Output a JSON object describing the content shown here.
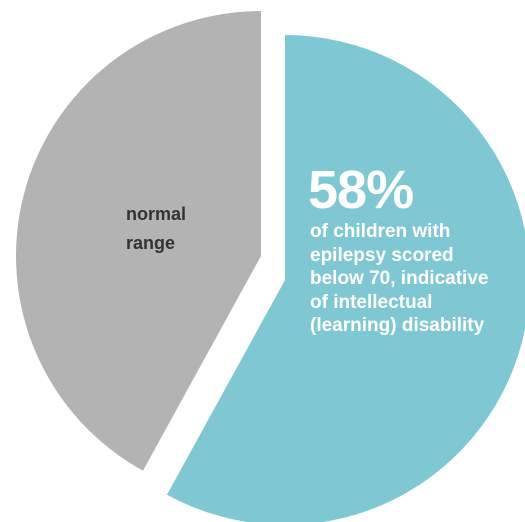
{
  "chart_data": {
    "type": "pie",
    "categories": [
      null,
      "normal range"
    ],
    "values": [
      58,
      42
    ],
    "value_labels": [
      "58%",
      null
    ],
    "colors": [
      "#7fc8d3",
      "#b3b3b3"
    ],
    "annotation": "of children with epilepsy scored below 70, indicative of intellectual (learning) disability"
  }
}
